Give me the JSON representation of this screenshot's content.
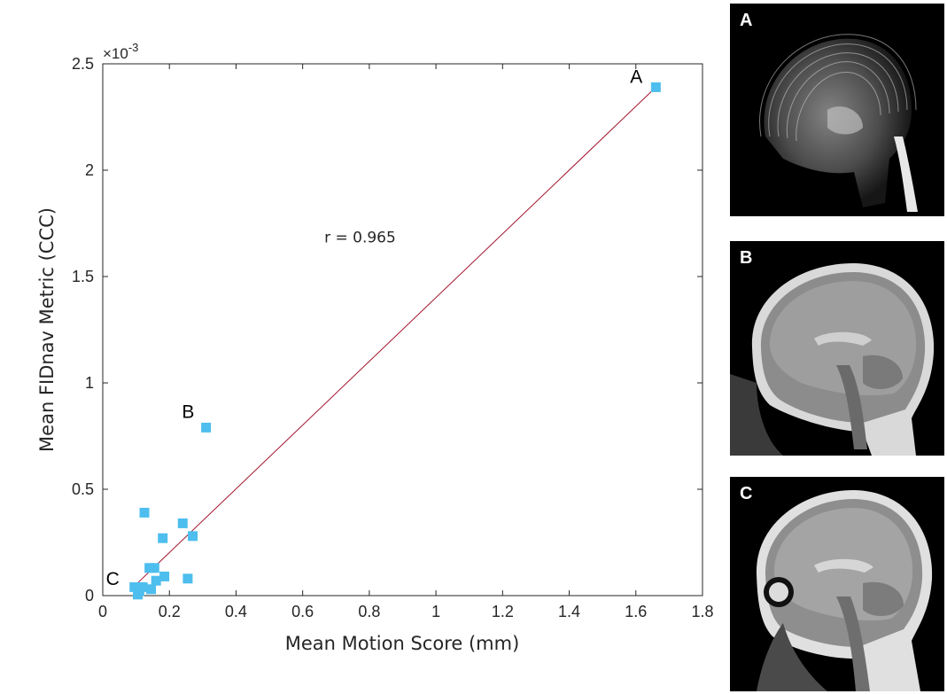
{
  "chart_data": {
    "type": "scatter",
    "xlabel": "Mean Motion Score (mm)",
    "ylabel": "Mean FIDnav Metric (CCC)",
    "y_exponent_label": "×10",
    "y_exponent_power": "-3",
    "xlim": [
      0,
      1.8
    ],
    "ylim": [
      0,
      2.5
    ],
    "x_ticks": [
      0,
      0.2,
      0.4,
      0.6,
      0.8,
      1.0,
      1.2,
      1.4,
      1.6,
      1.8
    ],
    "x_tick_labels": [
      "0",
      "0.2",
      "0.4",
      "0.6",
      "0.8",
      "1",
      "1.2",
      "1.4",
      "1.6",
      "1.8"
    ],
    "y_ticks": [
      0,
      0.5,
      1.0,
      1.5,
      2.0,
      2.5
    ],
    "y_tick_labels": [
      "0",
      "0.5",
      "1",
      "1.5",
      "2",
      "2.5"
    ],
    "marker_color": "#4DBEEE",
    "fit_color": "#A2142F",
    "points": [
      {
        "x": 1.66,
        "y": 2.39
      },
      {
        "x": 0.31,
        "y": 0.79
      },
      {
        "x": 0.125,
        "y": 0.39
      },
      {
        "x": 0.24,
        "y": 0.34
      },
      {
        "x": 0.27,
        "y": 0.28
      },
      {
        "x": 0.18,
        "y": 0.27
      },
      {
        "x": 0.14,
        "y": 0.13
      },
      {
        "x": 0.155,
        "y": 0.13
      },
      {
        "x": 0.185,
        "y": 0.09
      },
      {
        "x": 0.16,
        "y": 0.07
      },
      {
        "x": 0.255,
        "y": 0.08
      },
      {
        "x": 0.12,
        "y": 0.04
      },
      {
        "x": 0.145,
        "y": 0.03
      },
      {
        "x": 0.095,
        "y": 0.04
      },
      {
        "x": 0.11,
        "y": 0.02
      },
      {
        "x": 0.105,
        "y": 0.005
      }
    ],
    "fit_line": {
      "x": [
        0.095,
        1.66
      ],
      "y": [
        0.045,
        2.39
      ]
    },
    "correlation_text": "r = 0.965",
    "correlation_pos": {
      "x": 0.665,
      "y": 1.66
    },
    "point_annotations": [
      {
        "label": "A",
        "x": 1.62,
        "y": 2.41
      },
      {
        "label": "B",
        "x": 0.275,
        "y": 0.835
      },
      {
        "label": "C",
        "x": 0.05,
        "y": 0.05
      }
    ]
  },
  "panels": [
    {
      "letter": "A",
      "icon": "mri-sagittal-motion-corrupted-icon"
    },
    {
      "letter": "B",
      "icon": "mri-sagittal-mild-motion-icon"
    },
    {
      "letter": "C",
      "icon": "mri-sagittal-clean-icon"
    }
  ]
}
